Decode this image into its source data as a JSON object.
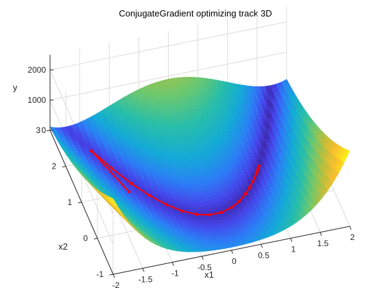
{
  "chart_data": {
    "type": "surface",
    "title": "ConjugateGradient optimizing track 3D",
    "xlabel": "x1",
    "ylabel": "x2",
    "zlabel": "y",
    "xlim": [
      -2,
      2
    ],
    "ylim": [
      -1,
      3
    ],
    "zlim": [
      0,
      2500
    ],
    "x_ticks": [
      "-2",
      "-1.5",
      "-1",
      "-0.5",
      "0",
      "0.5",
      "1",
      "1.5",
      "2"
    ],
    "y_ticks": [
      "-1",
      "0",
      "1",
      "2",
      "3"
    ],
    "z_ticks": [
      "0",
      "1000",
      "2000"
    ],
    "grid": true,
    "surface_function": "rosenbrock: (1-x1)^2 + 100*(x2-x1^2)^2",
    "colors": {
      "track": "#ff0000"
    },
    "series": [
      {
        "type": "line3d",
        "x1": [
          -1.2,
          -1.5,
          -1.3,
          -1.1,
          -0.9,
          -0.7,
          -0.5,
          -0.3,
          -0.1,
          0.1,
          0.3,
          0.45,
          0.6,
          0.7,
          0.8,
          0.85,
          0.9,
          0.93,
          0.96,
          0.98,
          1.0
        ],
        "x2": [
          1.0,
          2.25,
          1.69,
          1.21,
          0.81,
          0.49,
          0.25,
          0.09,
          0.01,
          0.01,
          0.09,
          0.2,
          0.36,
          0.49,
          0.64,
          0.72,
          0.81,
          0.86,
          0.92,
          0.96,
          1.0
        ],
        "y": [
          24.2,
          6.25,
          5.29,
          4.41,
          3.61,
          2.89,
          2.25,
          1.69,
          1.21,
          0.81,
          0.49,
          0.3,
          0.16,
          0.09,
          0.04,
          0.02,
          0.01,
          0.005,
          0.002,
          0.0004,
          0
        ]
      }
    ]
  }
}
